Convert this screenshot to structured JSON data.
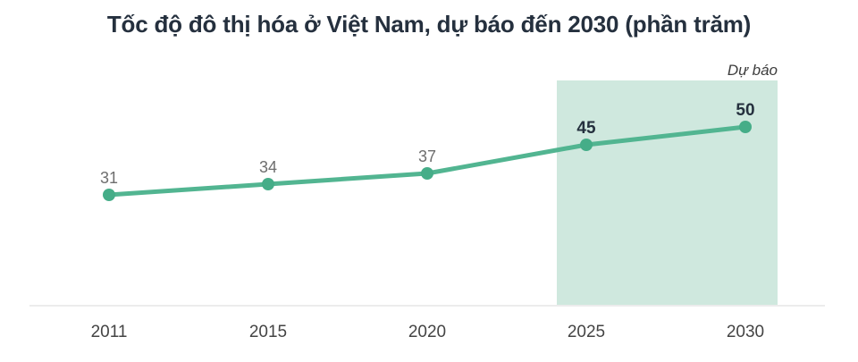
{
  "chart_data": {
    "type": "line",
    "title": "Tốc độ đô thị hóa ở Việt Nam, dự báo đến 2030 (phần trăm)",
    "categories": [
      "2011",
      "2015",
      "2020",
      "2025",
      "2030"
    ],
    "values": [
      31,
      34,
      37,
      45,
      50
    ],
    "value_labels": true,
    "xlabel": "",
    "ylabel": "",
    "ylim": [
      0,
      63
    ],
    "grid": false,
    "legend": "none",
    "forecast": {
      "label": "Dự báo",
      "start_index": 3,
      "end_index": 4
    },
    "colors": {
      "line": "#52b591",
      "marker": "#45ad88",
      "forecast_region": "#cfe8de",
      "value_label_actual": "#6e6e6e",
      "value_label_forecast": "#25303e",
      "axis_line": "#d9d9d9",
      "axis_text": "#444444",
      "forecast_label": "#3d3d3d",
      "title": "#25303e"
    }
  }
}
